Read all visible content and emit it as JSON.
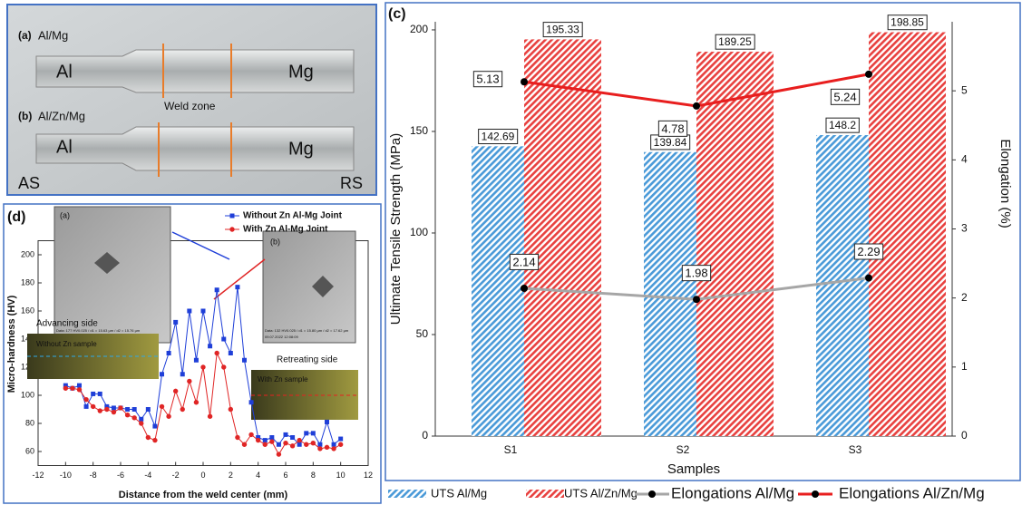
{
  "photo_panel": {
    "label_a": "(a)",
    "title_a": "Al/Mg",
    "left_a": "Al",
    "right_a": "Mg",
    "weld": "Weld zone",
    "label_b": "(b)",
    "title_b": "Al/Zn/Mg",
    "left_b": "Al",
    "right_b": "Mg",
    "as": "AS",
    "rs": "RS"
  },
  "chart_data": [
    {
      "type": "bar",
      "panel_label": "(c)",
      "categories": [
        "S1",
        "S2",
        "S3"
      ],
      "series": [
        {
          "name": "UTS Al/Mg",
          "color": "#4a9ad8",
          "values": [
            142.69,
            139.84,
            148.2
          ]
        },
        {
          "name": "UTS Al/Zn/Mg",
          "color": "#e8413f",
          "values": [
            195.33,
            189.25,
            198.85
          ]
        },
        {
          "name": "Elongations Al/Mg",
          "color": "#a6a6a6",
          "type": "line",
          "axis": "y2",
          "values": [
            2.14,
            1.98,
            2.29
          ]
        },
        {
          "name": "Elongations Al/Zn/Mg",
          "color": "#e81e1e",
          "type": "line",
          "axis": "y2",
          "values": [
            5.13,
            4.78,
            5.24
          ]
        }
      ],
      "ylim": [
        0,
        204
      ],
      "yticks": [
        0,
        50,
        100,
        150,
        200
      ],
      "y2lim": [
        0,
        6
      ],
      "y2ticks": [
        0,
        1,
        2,
        3,
        4,
        5
      ],
      "xlabel": "Samples",
      "ylabel": "Ultimate Tensile Strength (MPa)",
      "y2label": "Elongation (%)"
    },
    {
      "type": "line",
      "panel_label": "(d)",
      "x": [
        -10,
        -9.5,
        -9,
        -8.5,
        -8,
        -7.5,
        -7,
        -6.5,
        -6,
        -5.5,
        -5,
        -4.5,
        -4,
        -3.5,
        -3,
        -2.5,
        -2,
        -1.5,
        -1,
        -0.5,
        0,
        0.5,
        1,
        1.5,
        2,
        2.5,
        3,
        3.5,
        4,
        4.5,
        5,
        5.5,
        6,
        6.5,
        7,
        7.5,
        8,
        8.5,
        9,
        9.5,
        10
      ],
      "series": [
        {
          "name": "Without Zn Al-Mg Joint",
          "color": "#1f3fd8",
          "marker": "square",
          "values": [
            107,
            105,
            107,
            92,
            101,
            101,
            92,
            91,
            91,
            90,
            90,
            83,
            90,
            78,
            115,
            130,
            152,
            115,
            160,
            125,
            160,
            135,
            175,
            140,
            130,
            177,
            125,
            95,
            70,
            68,
            70,
            65,
            72,
            70,
            65,
            73,
            73,
            65,
            81,
            65,
            69
          ]
        },
        {
          "name": "With Zn Al-Mg Joint",
          "color": "#e02525",
          "marker": "circle",
          "values": [
            105,
            105,
            104,
            97,
            92,
            89,
            90,
            88,
            91,
            86,
            84,
            80,
            70,
            68,
            92,
            85,
            103,
            90,
            110,
            95,
            120,
            85,
            130,
            120,
            90,
            70,
            65,
            72,
            68,
            65,
            67,
            58,
            66,
            64,
            68,
            65,
            66,
            62,
            63,
            62,
            65
          ]
        }
      ],
      "xlim": [
        -12,
        12
      ],
      "ylim": [
        50,
        210
      ],
      "xticks": [
        -12,
        -10,
        -8,
        -6,
        -4,
        -2,
        0,
        2,
        4,
        6,
        8,
        10,
        12
      ],
      "yticks": [
        60,
        80,
        100,
        120,
        140,
        160,
        180,
        200
      ],
      "xlabel": "Distance from the weld center (mm)",
      "ylabel": "Micro-hardness (HV)",
      "legend": "upper right",
      "annotations": {
        "inset_a": "(a)",
        "inset_a_data": "Data: 177 HV0.025 / d1 = 15.63 µm / d2 = 15.76 µm",
        "inset_a_date": "09.07.2022  12:06:09",
        "inset_b": "(b)",
        "inset_b_data": "Data: 132 HV0.025 / d1 = 15.80 µm / d2 = 17.62 µm",
        "inset_b_date": "09.07.2022  12:08:09",
        "advancing": "Advancing side",
        "without_sample": "Without Zn sample",
        "retreating": "Retreating side",
        "with_sample": "With Zn sample"
      }
    }
  ]
}
